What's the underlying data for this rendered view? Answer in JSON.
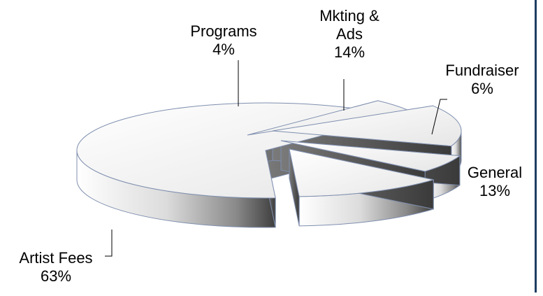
{
  "chart_data": {
    "type": "pie",
    "style": "3d-exploded",
    "title": "",
    "slices": [
      {
        "label_lines": [
          "Artist Fees",
          "63%"
        ],
        "value": 63
      },
      {
        "label_lines": [
          "Programs",
          "4%"
        ],
        "value": 4
      },
      {
        "label_lines": [
          "Mkting &",
          "Ads",
          "14%"
        ],
        "value": 14
      },
      {
        "label_lines": [
          "Fundraiser",
          "6%"
        ],
        "value": 6
      },
      {
        "label_lines": [
          "General",
          "13%"
        ],
        "value": 13
      }
    ],
    "colors": {
      "top": "#f2f2f2",
      "side_light": "#e0e0e0",
      "side_dark": "#4a4a4a",
      "edge": "#7f8faf",
      "frame": "#1f3d63"
    }
  }
}
